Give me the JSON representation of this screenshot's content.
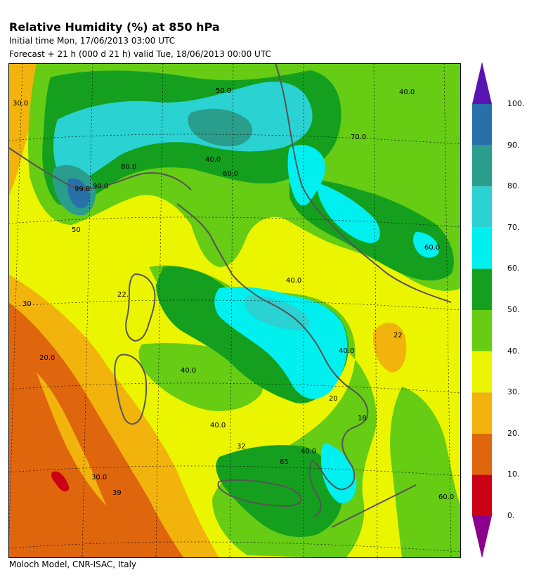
{
  "header": {
    "title": "Relative Humidity (%) at 850 hPa",
    "initial_time": "Initial time  Mon, 17/06/2013  03:00 UTC",
    "forecast": "Forecast  +  21 h  (000 d 21 h)  valid Tue, 18/06/2013 00:00 UTC"
  },
  "footer": "Moloch Model, CNR-ISAC, Italy",
  "colorbar": {
    "classes": [
      {
        "from": 0,
        "to": 10,
        "color": "#cc0014"
      },
      {
        "from": 10,
        "to": 20,
        "color": "#e0660e"
      },
      {
        "from": 20,
        "to": 30,
        "color": "#f2b40c"
      },
      {
        "from": 30,
        "to": 40,
        "color": "#ecf500"
      },
      {
        "from": 40,
        "to": 50,
        "color": "#66cc14"
      },
      {
        "from": 50,
        "to": 60,
        "color": "#14a01e"
      },
      {
        "from": 60,
        "to": 70,
        "color": "#00f0f0"
      },
      {
        "from": 70,
        "to": 80,
        "color": "#2ad2d2"
      },
      {
        "from": 80,
        "to": 90,
        "color": "#2a9e8c"
      },
      {
        "from": 90,
        "to": 100,
        "color": "#2870a8"
      }
    ],
    "under_color": "#8c008c",
    "over_color": "#5a14b4",
    "labels": [
      "0.",
      "10.",
      "20.",
      "30.",
      "40.",
      "50.",
      "60.",
      "70.",
      "80.",
      "90.",
      "100."
    ]
  },
  "contour_labels": [
    "30.0",
    "40.0",
    "50.0",
    "60.0",
    "80.0",
    "90.0",
    "99.8",
    "70.0",
    "60.0",
    "40.0",
    "22",
    "22.",
    "20.0",
    "30",
    "40.0",
    "40.0",
    "40.0",
    "39",
    "65",
    "18",
    "50",
    "30.0",
    "40.0",
    "40.0",
    "60.0",
    "20",
    "32"
  ]
}
